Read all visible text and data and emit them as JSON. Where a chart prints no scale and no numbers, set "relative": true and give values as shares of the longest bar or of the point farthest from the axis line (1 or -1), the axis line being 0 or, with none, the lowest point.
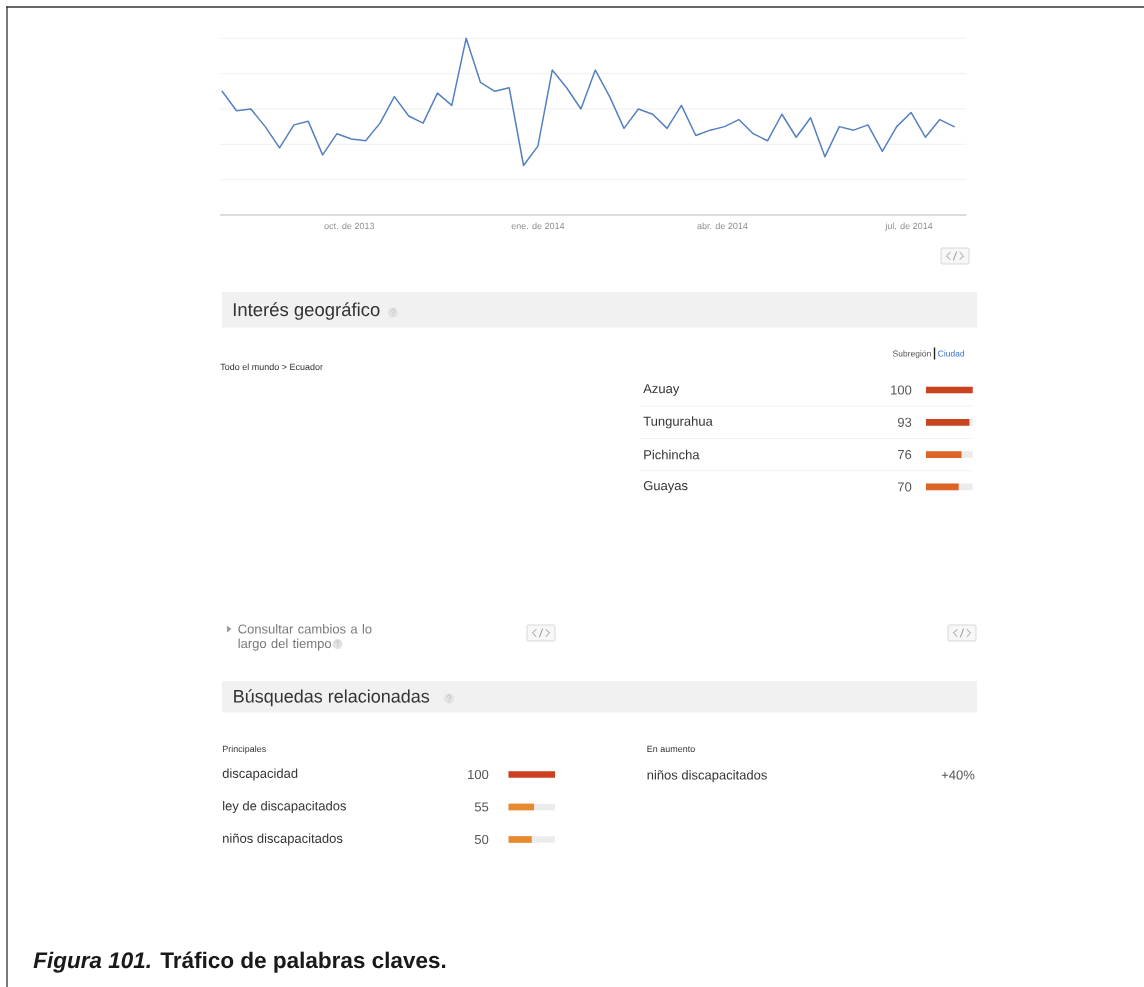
{
  "chart_data": [
    {
      "type": "line",
      "relative": true,
      "x": [
        "2013-07-31",
        "2013-08-07",
        "2013-08-14",
        "2013-08-21",
        "2013-08-28",
        "2013-09-04",
        "2013-09-11",
        "2013-09-18",
        "2013-09-25",
        "2013-10-02",
        "2013-10-09",
        "2013-10-16",
        "2013-10-23",
        "2013-10-30",
        "2013-11-06",
        "2013-11-13",
        "2013-11-20",
        "2013-11-27",
        "2013-12-04",
        "2013-12-11",
        "2013-12-18",
        "2013-12-25",
        "2014-01-01",
        "2014-01-08",
        "2014-01-15",
        "2014-01-22",
        "2014-01-29",
        "2014-02-05",
        "2014-02-12",
        "2014-02-19",
        "2014-02-26",
        "2014-03-05",
        "2014-03-12",
        "2014-03-19",
        "2014-03-26",
        "2014-04-02",
        "2014-04-09",
        "2014-04-16",
        "2014-04-23",
        "2014-04-30",
        "2014-05-07",
        "2014-05-14",
        "2014-05-21",
        "2014-05-28",
        "2014-06-04",
        "2014-06-11",
        "2014-06-18",
        "2014-06-25",
        "2014-07-02",
        "2014-07-09",
        "2014-07-16",
        "2014-07-23"
      ],
      "values": [
        0.7,
        0.59,
        0.6,
        0.5,
        0.38,
        0.51,
        0.53,
        0.34,
        0.46,
        0.43,
        0.42,
        0.52,
        0.67,
        0.56,
        0.52,
        0.69,
        0.62,
        1.0,
        0.75,
        0.7,
        0.72,
        0.28,
        0.39,
        0.82,
        0.72,
        0.6,
        0.82,
        0.67,
        0.49,
        0.6,
        0.57,
        0.49,
        0.62,
        0.45,
        0.48,
        0.5,
        0.54,
        0.46,
        0.42,
        0.57,
        0.44,
        0.55,
        0.33,
        0.5,
        0.48,
        0.51,
        0.36,
        0.5,
        0.58,
        0.44,
        0.54,
        0.5
      ],
      "color": "#5580c0",
      "xlim": [
        "2013-07-30",
        "2014-07-29"
      ],
      "xticks": [
        {
          "value": "2013-10-01",
          "label": "oct. de 2013"
        },
        {
          "value": "2014-01-01",
          "label": "ene. de 2014"
        },
        {
          "value": "2014-04-01",
          "label": "abr. de 2014"
        },
        {
          "value": "2014-07-01",
          "label": "jul. de 2014"
        }
      ],
      "grid": "y",
      "tick_labels": "x"
    },
    {
      "type": "other",
      "title": "Interés geográfico",
      "annotations": [
        "Todo el mundo > Ecuador",
        "Consultar cambios a lo largo del tiempo"
      ]
    },
    {
      "type": "bar",
      "orientation": "horizontal",
      "categories": [
        "Azuay",
        "Tungurahua",
        "Pichincha",
        "Guayas"
      ],
      "values": [
        100,
        93,
        76,
        70
      ],
      "colors": [
        "#c8431e",
        "#c8431e",
        "#dc6526",
        "#dc6526"
      ],
      "xlim": [
        0,
        100
      ],
      "data_labels": true,
      "tick_labels": "y",
      "annotations": [
        "Subregión",
        "Ciudad"
      ]
    },
    {
      "type": "bar",
      "orientation": "horizontal",
      "title": "Búsquedas relacionadas",
      "subtitle": "Principales",
      "categories": [
        "discapacidad",
        "ley de discapacitados",
        "niños discapacitados"
      ],
      "values": [
        100,
        55,
        50
      ],
      "colors": [
        "#cc3f1f",
        "#e8892f",
        "#e8892f"
      ],
      "xlim": [
        0,
        100
      ],
      "data_labels": true,
      "tick_labels": "y"
    },
    {
      "type": "other",
      "title": "En aumento",
      "annotations": [
        "niños discapacitados",
        "+40%",
        "*Figura 101.* Tráfico de palabras claves."
      ]
    }
  ]
}
